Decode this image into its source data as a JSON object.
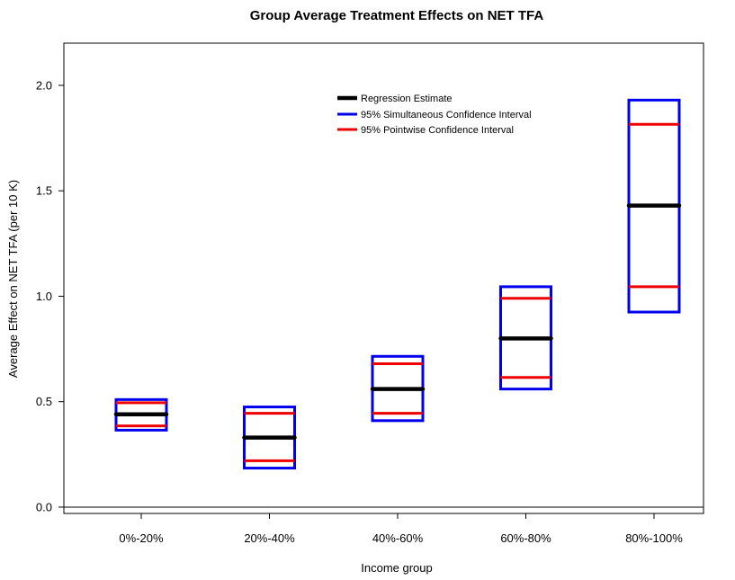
{
  "chart_data": {
    "type": "box",
    "title": "Group Average Treatment Effects on NET TFA",
    "xlabel": "Income group",
    "ylabel": "Average Effect on NET TFA (per 10 K)",
    "ylim": [
      -0.03,
      2.2
    ],
    "yticks": [
      0.0,
      0.5,
      1.0,
      1.5,
      2.0
    ],
    "ytick_labels": [
      "0.0",
      "0.5",
      "1.0",
      "1.5",
      "2.0"
    ],
    "reference_line": 0,
    "categories": [
      "0%-20%",
      "20%-40%",
      "40%-60%",
      "60%-80%",
      "80%-100%"
    ],
    "series": [
      {
        "name": "Regression Estimate",
        "color": "#000000",
        "values": [
          0.44,
          0.33,
          0.56,
          0.8,
          1.43
        ]
      },
      {
        "name": "95% Simultaneous Confidence Interval",
        "color": "#0000ee",
        "lower": [
          0.365,
          0.185,
          0.41,
          0.56,
          0.925
        ],
        "upper": [
          0.51,
          0.475,
          0.715,
          1.045,
          1.93
        ]
      },
      {
        "name": "95% Pointwise Confidence Interval",
        "color": "#ee0000",
        "lower": [
          0.385,
          0.22,
          0.445,
          0.615,
          1.045
        ],
        "upper": [
          0.495,
          0.445,
          0.68,
          0.99,
          1.815
        ]
      }
    ],
    "legend": {
      "position": "top-center",
      "entries": [
        "Regression Estimate",
        "95% Simultaneous Confidence Interval",
        "95% Pointwise Confidence Interval"
      ]
    }
  }
}
